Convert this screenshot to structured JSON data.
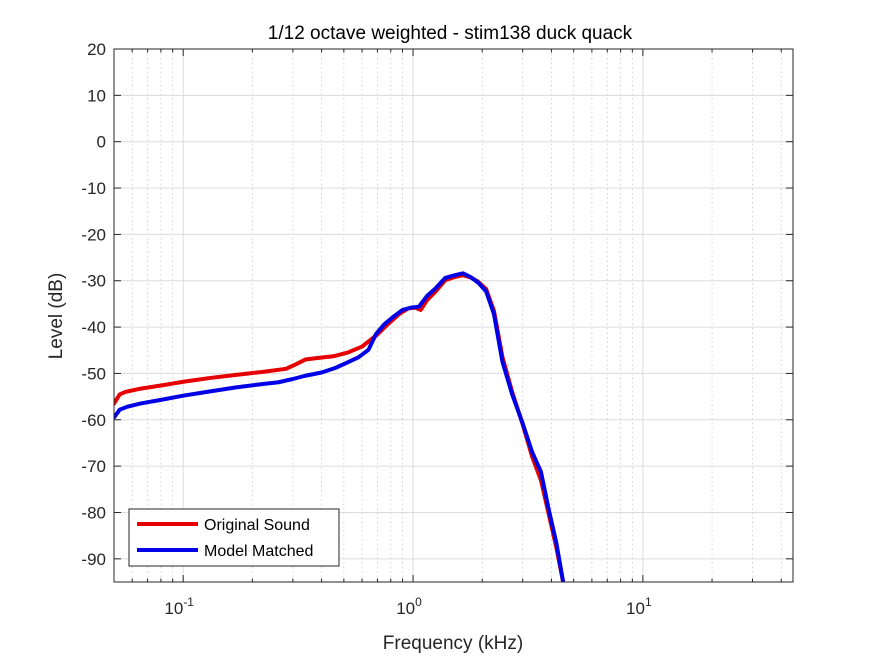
{
  "chart_data": {
    "type": "line",
    "title": "1/12 octave weighted - stim138 duck quack",
    "xlabel": "Frequency (kHz)",
    "ylabel": "Level (dB)",
    "xscale": "log",
    "xlim": [
      0.05,
      45
    ],
    "ylim": [
      -95,
      20
    ],
    "yticks": [
      20,
      10,
      0,
      -10,
      -20,
      -30,
      -40,
      -50,
      -60,
      -70,
      -80,
      -90
    ],
    "xticks": [
      {
        "value": 0.1,
        "base": "10",
        "exp": "-1"
      },
      {
        "value": 1,
        "base": "10",
        "exp": "0"
      },
      {
        "value": 10,
        "base": "10",
        "exp": "1"
      }
    ],
    "grid": true,
    "minor_grid": true,
    "legend_position": "bottom-left",
    "series": [
      {
        "name": "Original Sound",
        "color": "#e60000",
        "x": [
          0.05,
          0.053,
          0.056,
          0.065,
          0.08,
          0.1,
          0.13,
          0.17,
          0.22,
          0.28,
          0.31,
          0.34,
          0.38,
          0.45,
          0.52,
          0.6,
          0.7,
          0.78,
          0.87,
          0.95,
          1.02,
          1.08,
          1.15,
          1.25,
          1.38,
          1.52,
          1.65,
          1.78,
          1.92,
          2.08,
          2.25,
          2.45,
          2.7,
          3.0,
          3.3,
          3.6,
          3.9,
          4.2,
          4.5
        ],
        "y": [
          -56.5,
          -54.5,
          -54.0,
          -53.3,
          -52.6,
          -51.8,
          -51.0,
          -50.3,
          -49.7,
          -49.0,
          -48.0,
          -47.0,
          -46.7,
          -46.3,
          -45.5,
          -44.2,
          -41.6,
          -39.3,
          -37.2,
          -36.0,
          -35.8,
          -36.3,
          -34.2,
          -32.4,
          -29.9,
          -29.2,
          -28.8,
          -29.3,
          -30.2,
          -31.8,
          -36.5,
          -46.5,
          -54.0,
          -61.0,
          -68.0,
          -73.0,
          -80.5,
          -87.5,
          -95
        ]
      },
      {
        "name": "Model Matched",
        "color": "#0000e6",
        "x": [
          0.05,
          0.053,
          0.057,
          0.065,
          0.08,
          0.1,
          0.13,
          0.17,
          0.22,
          0.26,
          0.3,
          0.34,
          0.4,
          0.46,
          0.52,
          0.58,
          0.64,
          0.69,
          0.75,
          0.82,
          0.9,
          0.98,
          1.06,
          1.15,
          1.25,
          1.38,
          1.52,
          1.65,
          1.78,
          1.92,
          2.08,
          2.25,
          2.45,
          2.7,
          3.0,
          3.3,
          3.6,
          3.9,
          4.2,
          4.5
        ],
        "y": [
          -59.5,
          -57.8,
          -57.2,
          -56.5,
          -55.7,
          -54.8,
          -53.9,
          -53.0,
          -52.3,
          -51.9,
          -51.2,
          -50.5,
          -49.8,
          -48.8,
          -47.6,
          -46.5,
          -44.9,
          -41.5,
          -39.4,
          -37.8,
          -36.3,
          -35.8,
          -35.6,
          -33.3,
          -31.7,
          -29.4,
          -28.8,
          -28.4,
          -29.2,
          -30.4,
          -32.3,
          -37.2,
          -47.5,
          -54.5,
          -60.8,
          -67.0,
          -71.2,
          -79.5,
          -86.5,
          -95
        ]
      }
    ]
  }
}
